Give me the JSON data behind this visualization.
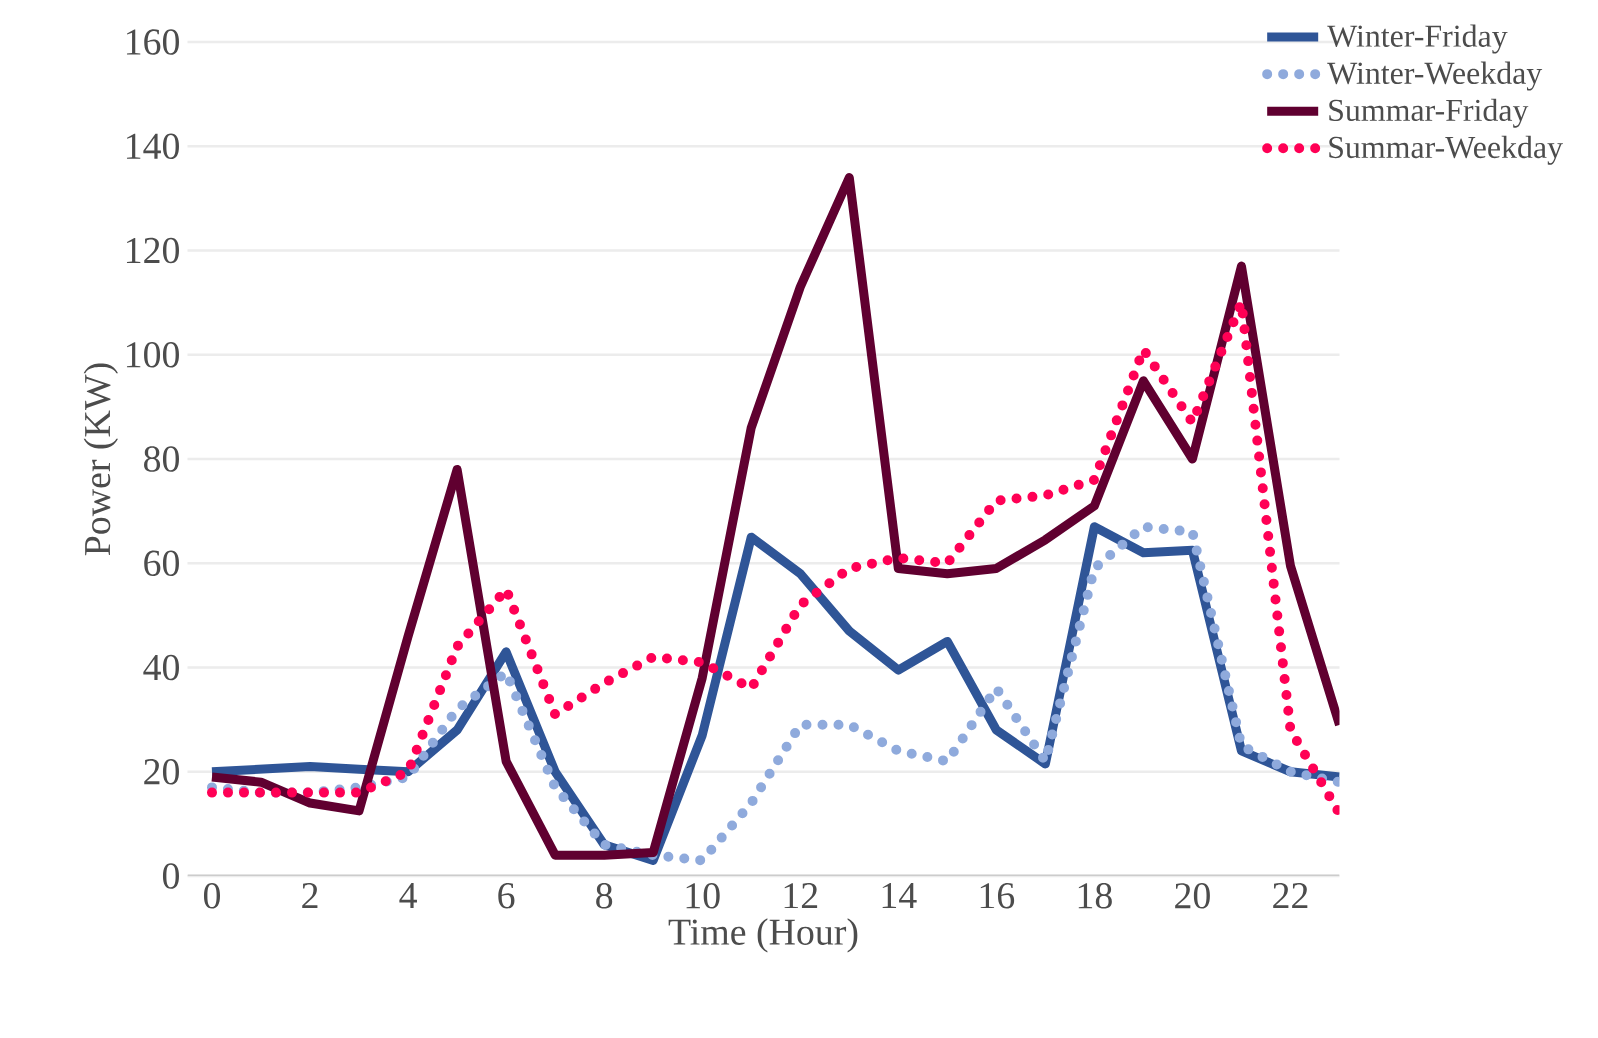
{
  "chart_data": {
    "type": "line",
    "xlabel": "Time (Hour)",
    "ylabel": "Power (KW)",
    "x": [
      0,
      1,
      2,
      3,
      4,
      5,
      6,
      7,
      8,
      9,
      10,
      11,
      12,
      13,
      14,
      15,
      16,
      17,
      18,
      19,
      20,
      21,
      22,
      23
    ],
    "xlim": [
      -0.5,
      23
    ],
    "xticks": [
      0,
      2,
      4,
      6,
      8,
      10,
      12,
      14,
      16,
      18,
      20,
      22
    ],
    "ylim": [
      0,
      160
    ],
    "yticks": [
      0,
      20,
      40,
      60,
      80,
      100,
      120,
      140,
      160
    ],
    "grid": "y",
    "legend": "top right",
    "marker": "none",
    "series": [
      {
        "name": "Winter-Friday",
        "color": "#2f5597",
        "line_style": "solid",
        "values": [
          20,
          20.5,
          21,
          20.5,
          20,
          28,
          43,
          20,
          6,
          3,
          27,
          65,
          58,
          47,
          39.5,
          45,
          28,
          21.5,
          67,
          62,
          62.5,
          24,
          20,
          19
        ]
      },
      {
        "name": "Winter-Weekday",
        "color": "#8faadc",
        "line_style": "dotted",
        "values": [
          17,
          16,
          16,
          17,
          19,
          32,
          39,
          17,
          6,
          4,
          3,
          14,
          29,
          29,
          24,
          22,
          36,
          22,
          59,
          67,
          66,
          25,
          20,
          18
        ]
      },
      {
        "name": "Summar-Friday",
        "color": "#600030",
        "line_style": "solid",
        "values": [
          19,
          18,
          14,
          12.5,
          46,
          78,
          22,
          4,
          4,
          4.5,
          38,
          86,
          113,
          134,
          59,
          58,
          59,
          64.5,
          71,
          95,
          80,
          117,
          59.5,
          29
        ]
      },
      {
        "name": "Summar-Weekday",
        "color": "#ff0055",
        "line_style": "dotted",
        "values": [
          16,
          16,
          16,
          16,
          20,
          44,
          55,
          31,
          37,
          42,
          41,
          36,
          52,
          59,
          61,
          60,
          72,
          73,
          76,
          101,
          87,
          110,
          28,
          12
        ]
      }
    ]
  }
}
